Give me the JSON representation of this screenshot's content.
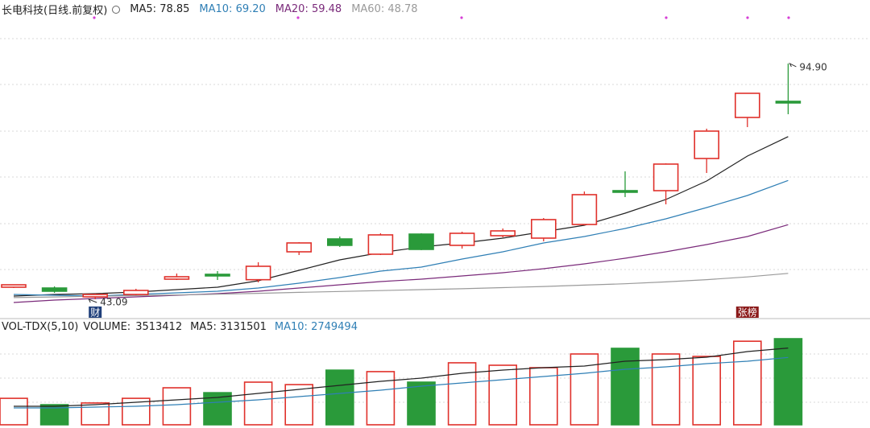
{
  "chart_data": [
    {
      "type": "candlestick",
      "title": "长电科技(日线.前复权)",
      "categories": [
        null,
        null,
        null,
        null,
        null,
        null,
        null,
        null,
        null,
        null,
        null,
        null,
        null,
        null,
        null,
        null,
        null,
        null,
        null,
        null
      ],
      "open": [
        45.74,
        45.56,
        43.62,
        44.15,
        47.51,
        48.57,
        47.39,
        53.52,
        56.35,
        52.99,
        57.41,
        54.94,
        57.06,
        56.53,
        59.53,
        66.96,
        66.96,
        74.03,
        83.05,
        86.59
      ],
      "high": [
        46.27,
        45.92,
        44.33,
        45.39,
        48.75,
        49.28,
        51.22,
        55.64,
        56.88,
        57.59,
        57.59,
        57.94,
        58.65,
        60.95,
        66.78,
        71.2,
        72.97,
        80.58,
        88.36,
        94.9
      ],
      "low": [
        45.56,
        44.5,
        43.09,
        43.97,
        47.33,
        47.33,
        46.8,
        52.81,
        54.58,
        52.81,
        53.88,
        54.23,
        56.7,
        55.82,
        59.36,
        65.55,
        63.95,
        70.85,
        80.93,
        83.76
      ],
      "close": [
        46.27,
        44.86,
        44.15,
        45.03,
        48.04,
        48.22,
        50.34,
        55.47,
        54.94,
        57.24,
        54.05,
        57.59,
        58.12,
        60.6,
        66.08,
        66.61,
        72.8,
        80.05,
        88.36,
        86.24
      ],
      "up_color": "#e0312b",
      "down_color": "#2a9a3a",
      "max_label": "94.90",
      "min_label": "43.09",
      "event_labels": [
        null,
        null,
        "财",
        null,
        null,
        null,
        null,
        null,
        null,
        null,
        null,
        null,
        null,
        null,
        null,
        null,
        null,
        null,
        "张榜",
        null
      ],
      "event_colors": [
        null,
        null,
        "#1f3f7a",
        null,
        null,
        null,
        null,
        null,
        null,
        null,
        null,
        null,
        null,
        null,
        null,
        null,
        null,
        null,
        "#8b1a1a",
        null
      ],
      "ylim": [
        39.55,
        105.33
      ],
      "series": [
        {
          "name": "MA5:",
          "color": "#222222",
          "value_label": "78.85",
          "values": [
            43.8,
            44.15,
            44.33,
            44.68,
            45.21,
            45.74,
            47.16,
            49.45,
            51.75,
            53.34,
            54.58,
            55.47,
            56.53,
            57.94,
            59.36,
            62.01,
            65.02,
            69.08,
            74.56,
            78.85
          ]
        },
        {
          "name": "MA10:",
          "color": "#2f7fb5",
          "value_label": "69.20",
          "values": [
            44.15,
            43.97,
            43.8,
            44.15,
            44.5,
            44.86,
            45.56,
            46.63,
            47.86,
            49.28,
            50.16,
            51.93,
            53.52,
            55.47,
            56.88,
            58.65,
            60.77,
            63.25,
            65.9,
            69.2
          ]
        },
        {
          "name": "MA20:",
          "color": "#7a2a7a",
          "value_label": "59.48",
          "values": [
            42.38,
            42.91,
            43.27,
            43.62,
            43.97,
            44.33,
            44.86,
            45.56,
            46.27,
            46.98,
            47.51,
            48.22,
            48.92,
            49.81,
            50.87,
            52.11,
            53.52,
            55.11,
            56.88,
            59.48
          ]
        },
        {
          "name": "MA60:",
          "color": "#9a9a9a",
          "value_label": "48.78",
          "values": [
            43.45,
            43.6,
            43.75,
            43.9,
            44.05,
            44.2,
            44.4,
            44.6,
            44.8,
            45.0,
            45.2,
            45.4,
            45.65,
            45.9,
            46.2,
            46.5,
            46.9,
            47.4,
            48.0,
            48.78
          ]
        }
      ]
    },
    {
      "type": "bar",
      "title": "VOL-TDX(5,10)",
      "name": "VOLUME:",
      "values": [
        1080000,
        820000,
        890000,
        1080000,
        1510000,
        1310000,
        1740000,
        1640000,
        2230000,
        2170000,
        1740000,
        2530000,
        2430000,
        2330000,
        2890000,
        3120000,
        2890000,
        2790000,
        3410000,
        3513412
      ],
      "ylim": [
        0,
        3612000
      ],
      "series": [
        {
          "name": "MA5:",
          "color": "#222222",
          "values": [
            755000,
            755000,
            821000,
            919000,
            1018000,
            1116000,
            1281000,
            1445000,
            1609000,
            1773000,
            1904000,
            2102000,
            2233000,
            2331000,
            2397000,
            2594000,
            2660000,
            2758000,
            2988000,
            3131501
          ]
        },
        {
          "name": "MA10:",
          "color": "#2f7fb5",
          "values": [
            690000,
            690000,
            722000,
            755000,
            821000,
            919000,
            1018000,
            1149000,
            1281000,
            1412000,
            1576000,
            1707000,
            1839000,
            1970000,
            2102000,
            2266000,
            2364000,
            2496000,
            2594000,
            2749494
          ]
        }
      ]
    }
  ]
}
